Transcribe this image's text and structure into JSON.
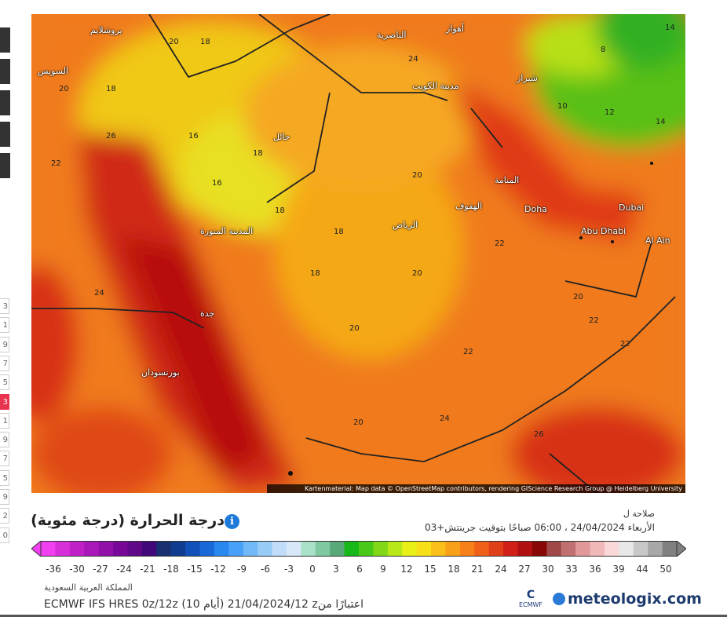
{
  "sidebar": {
    "top_buttons": 5,
    "steps": [
      "3",
      "1",
      "9",
      "7",
      "5",
      "3",
      "1",
      "9",
      "7",
      "5",
      "9",
      "2",
      "0"
    ],
    "active_index": 5
  },
  "map": {
    "attribution": "Kartenmaterial: Map data © OpenStreetMap contributors, rendering GIScience Research Group @ Heidelberg University",
    "cities": [
      "Doha",
      "Dubai",
      "Abu Dhabi",
      "Al Ain",
      "الرياض",
      "المنامة",
      "الهفوف",
      "مدينة الكويت",
      "الناصرية",
      "أهواز",
      "شيراز",
      "حائل",
      "المدينة المنورة",
      "جدة",
      "بورتسودان",
      "السويس",
      "يروشلايم"
    ],
    "values": [
      "20",
      "18",
      "20",
      "18",
      "24",
      "14",
      "8",
      "10",
      "12",
      "14",
      "16",
      "18",
      "16",
      "26",
      "22",
      "24",
      "18",
      "18",
      "20",
      "18",
      "20",
      "22",
      "20",
      "24",
      "22",
      "26",
      "22",
      "20",
      "22",
      "20"
    ]
  },
  "legend": {
    "title": "درجة الحرارة (درجة مئوية)",
    "info_icon": "info-icon",
    "valid_label": "صلاحة ل",
    "valid_time": "الأربعاء 24/04/2024 ، 06:00 صباحًا بتوقيت جرينتش+03",
    "ticks": [
      "-36",
      "-30",
      "-27",
      "-24",
      "-21",
      "-18",
      "-15",
      "-12",
      "-9",
      "-6",
      "-3",
      "0",
      "3",
      "6",
      "9",
      "12",
      "15",
      "18",
      "21",
      "24",
      "27",
      "30",
      "33",
      "36",
      "39",
      "44",
      "50"
    ],
    "colors": [
      "#f040f0",
      "#d830d8",
      "#c020c8",
      "#a818b8",
      "#9010a8",
      "#780898",
      "#600888",
      "#400878",
      "#183070",
      "#103c90",
      "#1050b8",
      "#1868d8",
      "#2888f0",
      "#48a0f8",
      "#70b8f8",
      "#98ccf8",
      "#c0dcf8",
      "#d8e8f8",
      "#a8e0c8",
      "#80c8a0",
      "#58a878",
      "#18b818",
      "#48c818",
      "#80d818",
      "#b8e818",
      "#e8f018",
      "#f8e018",
      "#f8c018",
      "#f8a018",
      "#f88018",
      "#f06018",
      "#e04018",
      "#d02018",
      "#b01010",
      "#880808",
      "#a04848",
      "#c07070",
      "#e09898",
      "#f0b8b8",
      "#f8d8d8",
      "#e8e8e8",
      "#c8c8c8",
      "#a8a8a8",
      "#808080"
    ],
    "region": "المملكة العربية السعودية",
    "model": "ECMWF IFS HRES 0z/12z (10 أيام) 21/04/2024/12 zاعتبارًا من",
    "ecmwf_logo": "ECMWF",
    "brand": "meteologix.com"
  }
}
